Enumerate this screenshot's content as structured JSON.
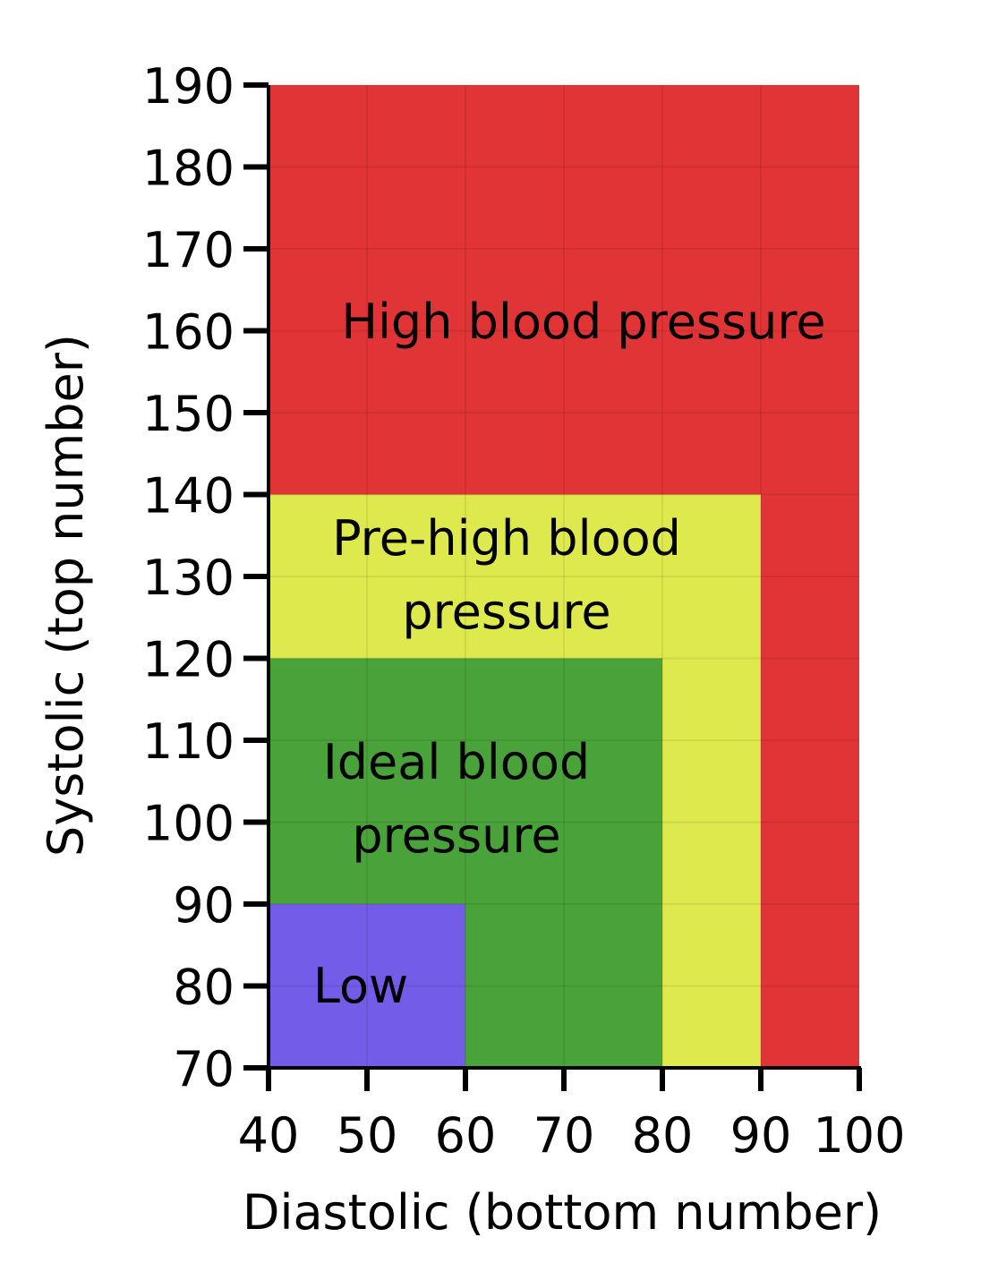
{
  "chart_data": {
    "type": "heatmap",
    "xlabel": "Diastolic (bottom number)",
    "ylabel": "Systolic (top number)",
    "xlim": [
      40,
      100
    ],
    "ylim": [
      70,
      190
    ],
    "x_ticks": [
      40,
      50,
      60,
      70,
      80,
      90,
      100
    ],
    "y_ticks": [
      70,
      80,
      90,
      100,
      110,
      120,
      130,
      140,
      150,
      160,
      170,
      180,
      190
    ],
    "grid": true,
    "regions": [
      {
        "label": "High blood pressure",
        "label_lines": [
          "High blood pressure"
        ],
        "x": [
          40,
          100
        ],
        "y": [
          70,
          190
        ],
        "color": "#e03436"
      },
      {
        "label": "Pre-high blood pressure",
        "label_lines": [
          "Pre-high blood",
          "pressure"
        ],
        "x": [
          40,
          90
        ],
        "y": [
          70,
          140
        ],
        "color": "#dde94c"
      },
      {
        "label": "Ideal blood pressure",
        "label_lines": [
          "Ideal blood",
          "pressure"
        ],
        "x": [
          40,
          80
        ],
        "y": [
          70,
          120
        ],
        "color": "#4aa23a"
      },
      {
        "label": "Low",
        "label_lines": [
          "Low"
        ],
        "x": [
          40,
          60
        ],
        "y": [
          70,
          90
        ],
        "color": "#735ce8"
      }
    ]
  }
}
